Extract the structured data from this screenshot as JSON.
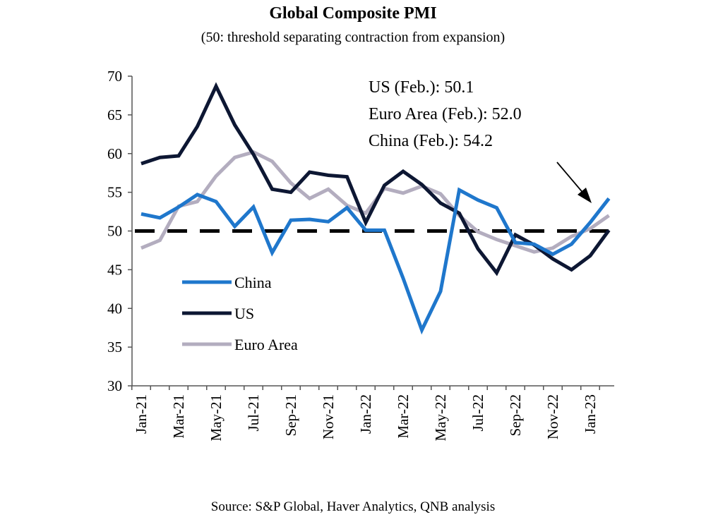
{
  "chart_data": {
    "type": "line",
    "title": "Global Composite PMI",
    "subtitle": "(50: threshold separating contraction from expansion)",
    "source": "Source: S&P Global, Haver Analytics, QNB analysis",
    "x": [
      "Jan-21",
      "Feb-21",
      "Mar-21",
      "Apr-21",
      "May-21",
      "Jun-21",
      "Jul-21",
      "Aug-21",
      "Sep-21",
      "Oct-21",
      "Nov-21",
      "Dec-21",
      "Jan-22",
      "Feb-22",
      "Mar-22",
      "Apr-22",
      "May-22",
      "Jun-22",
      "Jul-22",
      "Aug-22",
      "Sep-22",
      "Oct-22",
      "Nov-22",
      "Dec-22",
      "Jan-23",
      "Feb-23"
    ],
    "x_tick_labels": [
      "Jan-21",
      "Mar-21",
      "May-21",
      "Jul-21",
      "Sep-21",
      "Nov-21",
      "Jan-22",
      "Mar-22",
      "May-22",
      "Jul-22",
      "Sep-22",
      "Nov-22",
      "Jan-23"
    ],
    "ylim": [
      30,
      70
    ],
    "y_ticks": [
      30,
      35,
      40,
      45,
      50,
      55,
      60,
      65,
      70
    ],
    "grid": false,
    "threshold": 50,
    "legend_placement": "lower-left",
    "series": [
      {
        "name": "China",
        "color": "#1f77cc",
        "values": [
          52.2,
          51.7,
          53.1,
          54.7,
          53.8,
          50.6,
          53.1,
          47.2,
          51.4,
          51.5,
          51.2,
          53.0,
          50.1,
          50.1,
          43.9,
          37.2,
          42.2,
          55.3,
          54.0,
          53.0,
          48.5,
          48.3,
          47.0,
          48.3,
          51.1,
          54.2
        ]
      },
      {
        "name": "US",
        "color": "#0d1733",
        "values": [
          58.7,
          59.5,
          59.7,
          63.5,
          68.7,
          63.7,
          59.9,
          55.4,
          55.0,
          57.6,
          57.2,
          57.0,
          51.1,
          55.9,
          57.7,
          56.0,
          53.6,
          52.3,
          47.7,
          44.6,
          49.5,
          48.2,
          46.4,
          45.0,
          46.8,
          50.1
        ]
      },
      {
        "name": "Euro Area",
        "color": "#b3adbf",
        "values": [
          47.8,
          48.8,
          53.2,
          53.8,
          57.1,
          59.5,
          60.2,
          59.0,
          56.2,
          54.2,
          55.4,
          53.3,
          52.3,
          55.5,
          54.9,
          55.8,
          54.8,
          52.0,
          49.9,
          48.9,
          48.1,
          47.3,
          47.8,
          49.3,
          50.3,
          52.0
        ]
      }
    ],
    "annotations": [
      "US (Feb.):  50.1",
      "Euro Area (Feb.):  52.0",
      "China (Feb.):  54.2"
    ]
  }
}
